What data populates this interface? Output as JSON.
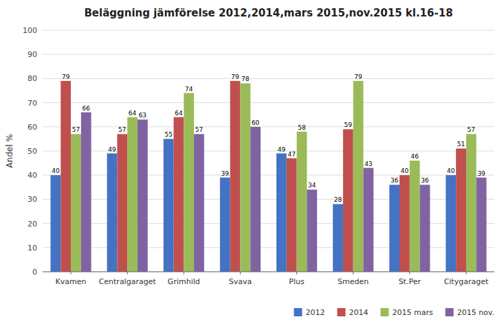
{
  "chart_data": {
    "type": "bar",
    "title": "Beläggning jämförelse 2012,2014,mars 2015,nov.2015 kl.16-18",
    "categories": [
      "Kvamen",
      "Centralgaraget",
      "Grimhild",
      "Svava",
      "Plus",
      "Smeden",
      "St.Per",
      "Citygaraget"
    ],
    "series": [
      {
        "name": "2012",
        "color": "#4472C4",
        "values": [
          40,
          49,
          55,
          39,
          49,
          28,
          36,
          40
        ]
      },
      {
        "name": "2014",
        "color": "#C0504D",
        "values": [
          79,
          57,
          64,
          79,
          47,
          59,
          40,
          51
        ]
      },
      {
        "name": "2015 mars",
        "color": "#9BBB59",
        "values": [
          57,
          64,
          74,
          78,
          58,
          79,
          46,
          57
        ]
      },
      {
        "name": "2015 nov.",
        "color": "#8064A2",
        "values": [
          66,
          63,
          57,
          60,
          34,
          43,
          36,
          39
        ]
      }
    ],
    "ylabel": "Andel %",
    "ylim": [
      0,
      100
    ],
    "yticks": [
      0,
      10,
      20,
      30,
      40,
      50,
      60,
      70,
      80,
      90,
      100
    ],
    "grid": true,
    "legend": "lower right",
    "data_labels": true
  }
}
